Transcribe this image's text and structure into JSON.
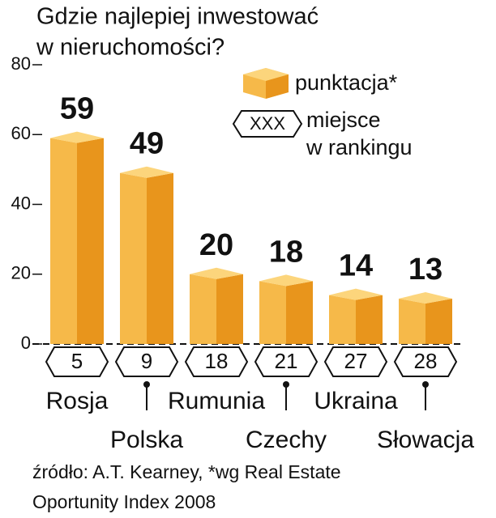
{
  "chart_data": {
    "type": "bar",
    "title_lines": [
      "Gdzie najlepiej inwestować",
      "w nieruchomości?"
    ],
    "categories": [
      "Rosja",
      "Polska",
      "Rumunia",
      "Czechy",
      "Ukraina",
      "Słowacja"
    ],
    "series": [
      {
        "name": "punktacja*",
        "color": "#f0a532",
        "values": [
          59,
          49,
          20,
          18,
          14,
          13
        ]
      }
    ],
    "ranks": {
      "symbol": "XXX",
      "name_lines": [
        "miejsce",
        "w rankingu"
      ],
      "values": [
        5,
        9,
        18,
        21,
        27,
        28
      ]
    },
    "ylim": [
      0,
      80
    ],
    "yticks": [
      0,
      20,
      40,
      60,
      80
    ],
    "source_lines": [
      "źródło: A.T. Kearney, *wg Real Estate",
      "Oportunity Index 2008"
    ]
  }
}
